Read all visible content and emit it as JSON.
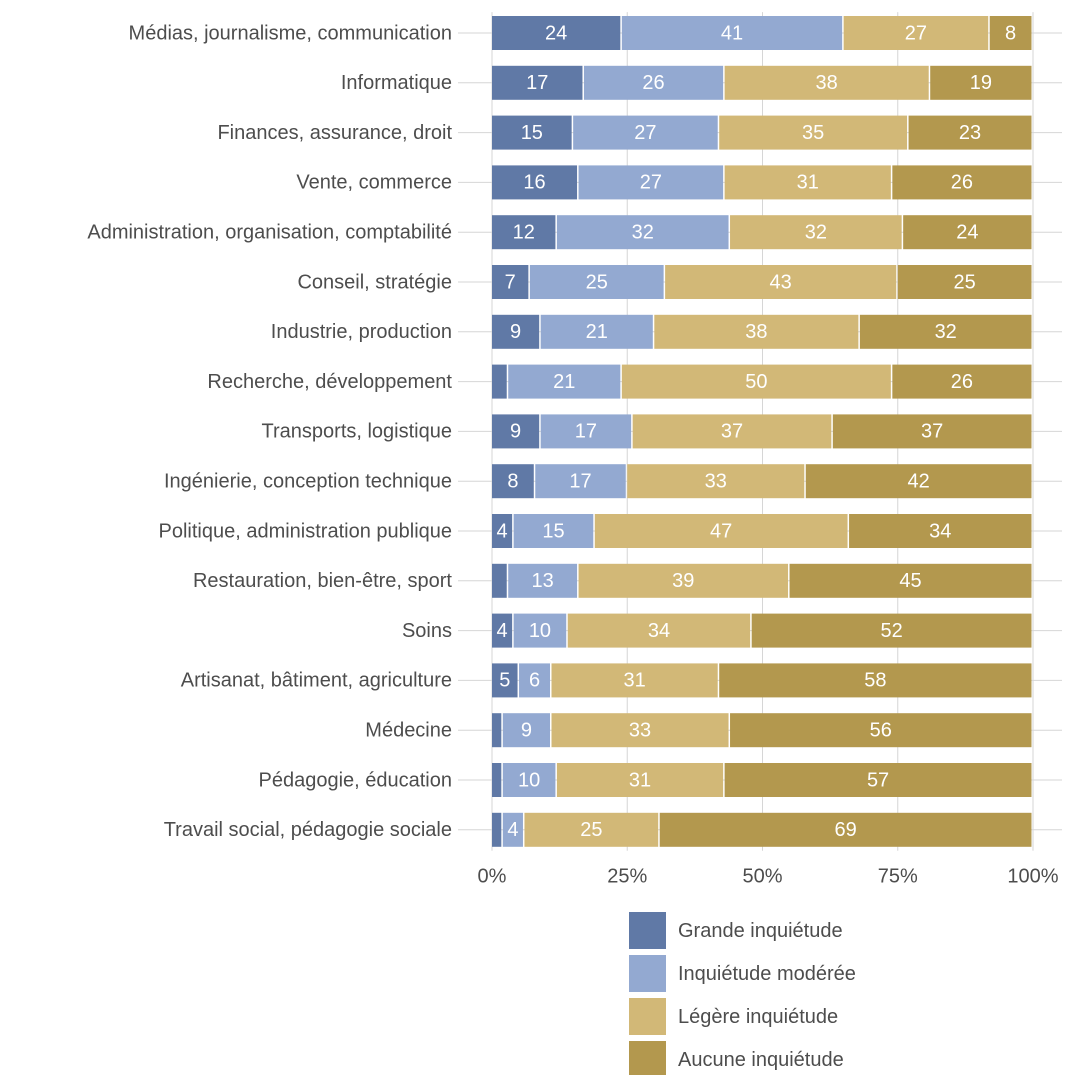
{
  "chart_data": {
    "type": "bar",
    "orientation": "horizontal",
    "stacked": true,
    "normalized_percent": true,
    "categories": [
      "Médias, journalisme, communication",
      "Informatique",
      "Finances, assurance, droit",
      "Vente, commerce",
      "Administration, organisation, comptabilité",
      "Conseil, stratégie",
      "Industrie, production",
      "Recherche, développement",
      "Transports, logistique",
      "Ingénierie, conception technique",
      "Politique, administration publique",
      "Restauration, bien-être, sport",
      "Soins",
      "Artisanat, bâtiment, agriculture",
      "Médecine",
      "Pédagogie, éducation",
      "Travail social, pédagogie sociale"
    ],
    "series": [
      {
        "name": "Grande inquiétude",
        "color": "#6079a6",
        "values": [
          24,
          17,
          15,
          16,
          12,
          7,
          9,
          3,
          9,
          8,
          4,
          3,
          4,
          5,
          2,
          2,
          2
        ]
      },
      {
        "name": "Inquiétude modérée",
        "color": "#93a9d1",
        "values": [
          41,
          26,
          27,
          27,
          32,
          25,
          21,
          21,
          17,
          17,
          15,
          13,
          10,
          6,
          9,
          10,
          4
        ]
      },
      {
        "name": "Légère inquiétude",
        "color": "#d2b877",
        "values": [
          27,
          38,
          35,
          31,
          32,
          43,
          38,
          50,
          37,
          33,
          47,
          39,
          34,
          31,
          33,
          31,
          25
        ]
      },
      {
        "name": "Aucune inquiétude",
        "color": "#b3984e",
        "values": [
          8,
          19,
          23,
          26,
          24,
          25,
          32,
          26,
          37,
          42,
          34,
          45,
          52,
          58,
          56,
          57,
          69
        ]
      }
    ],
    "data_label_min": 4,
    "xlim": [
      0,
      100
    ],
    "x_ticks": [
      0,
      25,
      50,
      75,
      100
    ],
    "x_tick_labels": [
      "0%",
      "25%",
      "50%",
      "75%",
      "100%"
    ],
    "title": "",
    "xlabel": "",
    "ylabel": "",
    "legend_position": "bottom",
    "grid": true,
    "colors": {
      "grid": "#d6d6d6",
      "label_text": "#4d4d4d",
      "data_label_text": "#ffffff"
    }
  }
}
